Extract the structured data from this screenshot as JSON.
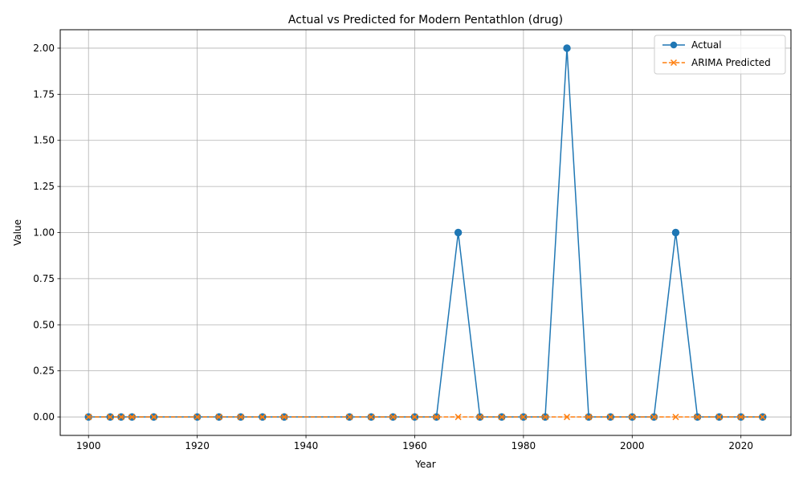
{
  "chart_data": {
    "type": "line",
    "title": "Actual vs Predicted for Modern Pentathlon (drug)",
    "xlabel": "Year",
    "ylabel": "Value",
    "xlim": [
      1894.8,
      2029.2
    ],
    "ylim": [
      -0.1,
      2.1
    ],
    "x_ticks": [
      1900,
      1920,
      1940,
      1960,
      1980,
      2000,
      2020
    ],
    "y_ticks": [
      0.0,
      0.25,
      0.5,
      0.75,
      1.0,
      1.25,
      1.5,
      1.75,
      2.0
    ],
    "y_tick_labels": [
      "0.00",
      "0.25",
      "0.50",
      "0.75",
      "1.00",
      "1.25",
      "1.50",
      "1.75",
      "2.00"
    ],
    "grid": true,
    "legend_position": "top-right",
    "x": [
      1900,
      1904,
      1906,
      1908,
      1912,
      1920,
      1924,
      1928,
      1932,
      1936,
      1948,
      1952,
      1956,
      1960,
      1964,
      1968,
      1972,
      1976,
      1980,
      1984,
      1988,
      1992,
      1996,
      2000,
      2004,
      2008,
      2012,
      2016,
      2020,
      2024
    ],
    "series": [
      {
        "name": "Actual",
        "color": "#1f77b4",
        "marker": "circle",
        "linestyle": "solid",
        "values": [
          0,
          0,
          0,
          0,
          0,
          0,
          0,
          0,
          0,
          0,
          0,
          0,
          0,
          0,
          0,
          1,
          0,
          0,
          0,
          0,
          2,
          0,
          0,
          0,
          0,
          1,
          0,
          0,
          0,
          0
        ]
      },
      {
        "name": "ARIMA Predicted",
        "color": "#ff7f0e",
        "marker": "x",
        "linestyle": "dashed",
        "values": [
          0,
          0,
          0,
          0,
          0,
          0,
          0,
          0,
          0,
          0,
          0,
          0,
          0,
          0,
          0,
          0,
          0,
          0,
          0,
          0,
          0,
          0,
          0,
          0,
          0,
          0,
          0,
          0,
          0,
          0
        ]
      }
    ]
  }
}
